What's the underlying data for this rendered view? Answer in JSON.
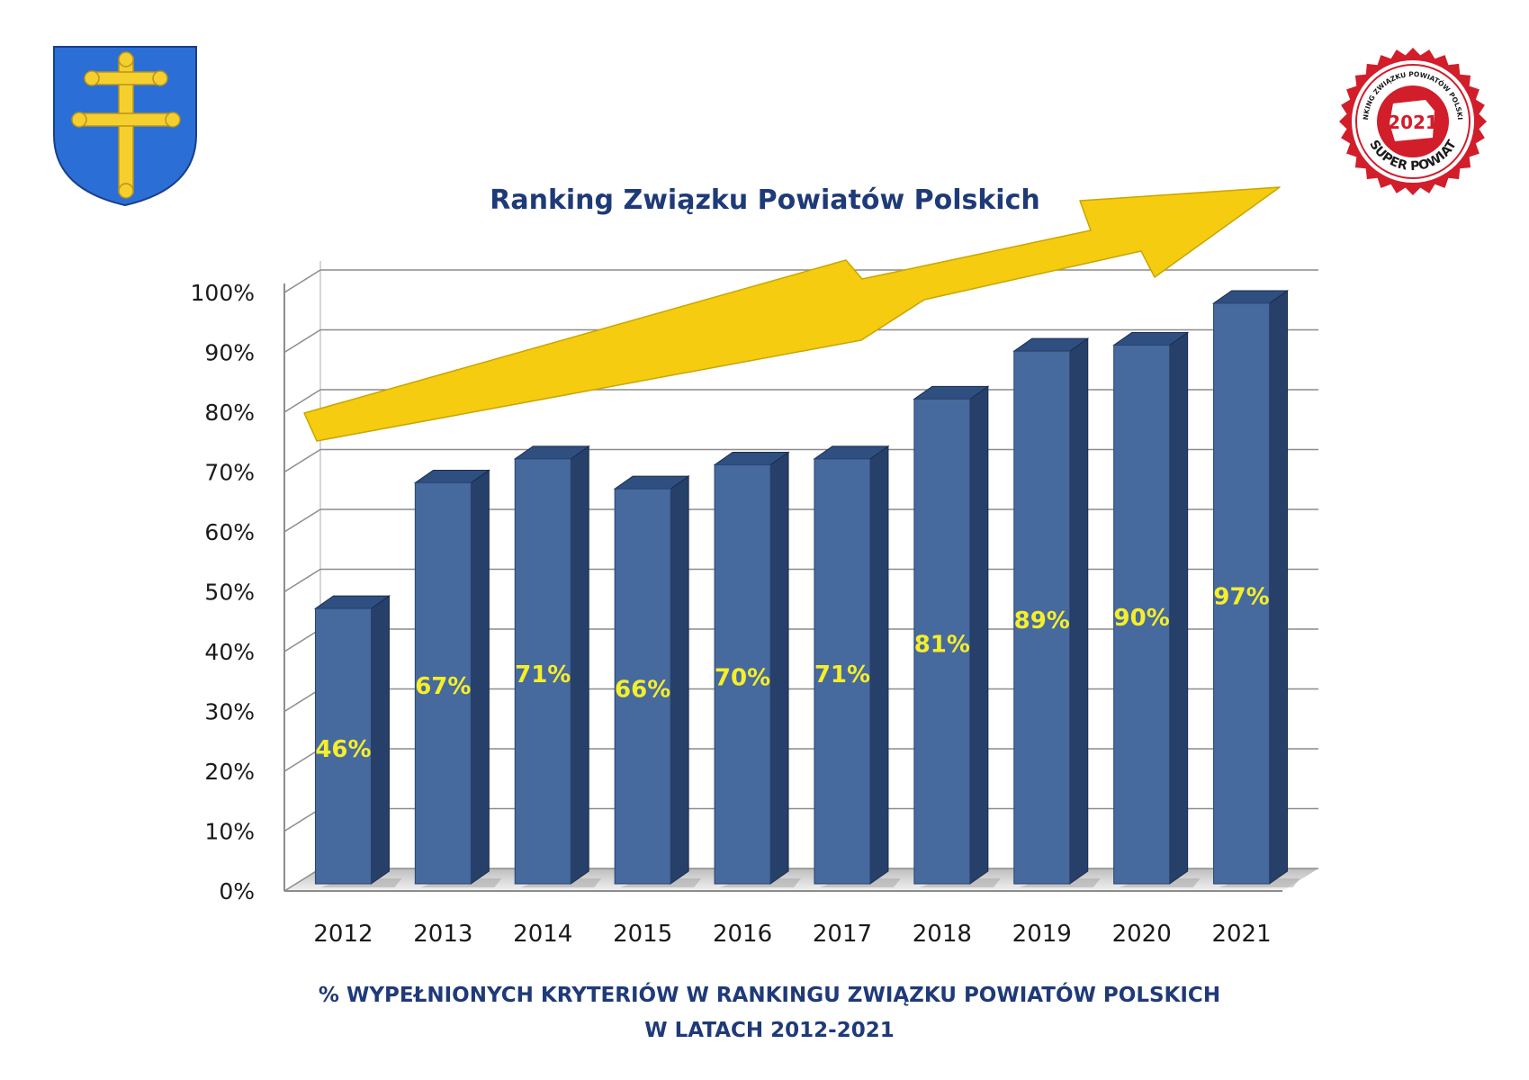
{
  "colors": {
    "title": "#1f3a78",
    "bar_front": "#46699e",
    "bar_side": "#27406a",
    "bar_top": "#2f4f80",
    "data_label": "#f5ee2a",
    "arrow": "#f5cc0f",
    "grid": "#8c8c8c",
    "shield": "#2b6fd6",
    "cross": "#f5cf2e",
    "badge_red": "#d21d2a"
  },
  "logos": {
    "coat_of_arms": "coat-of-arms-shield-icon",
    "badge": {
      "text_top": "RANKING ZWIĄZKU POWIATÓW POLSKICH",
      "year": "2021",
      "text_bottom": "SUPER POWIAT"
    }
  },
  "chart_data": {
    "type": "bar",
    "title": "Ranking Związku Powiatów Polskich",
    "categories": [
      "2012",
      "2013",
      "2014",
      "2015",
      "2016",
      "2017",
      "2018",
      "2019",
      "2020",
      "2021"
    ],
    "values": [
      46,
      67,
      71,
      66,
      70,
      71,
      81,
      89,
      90,
      97
    ],
    "data_labels": [
      "46%",
      "67%",
      "71%",
      "66%",
      "70%",
      "71%",
      "81%",
      "89%",
      "90%",
      "97%"
    ],
    "y_ticks": [
      "0%",
      "10%",
      "20%",
      "30%",
      "40%",
      "50%",
      "60%",
      "70%",
      "80%",
      "90%",
      "100%"
    ],
    "ylim": [
      0,
      100
    ],
    "grid": true,
    "style": "3d",
    "xlabel": "",
    "ylabel": "",
    "caption_line1": "% WYPEŁNIONYCH KRYTERIÓW W RANKINGU ZWIĄZKU POWIATÓW POLSKICH",
    "caption_line2": "W LATACH 2012-2021",
    "trend_arrow": true
  }
}
